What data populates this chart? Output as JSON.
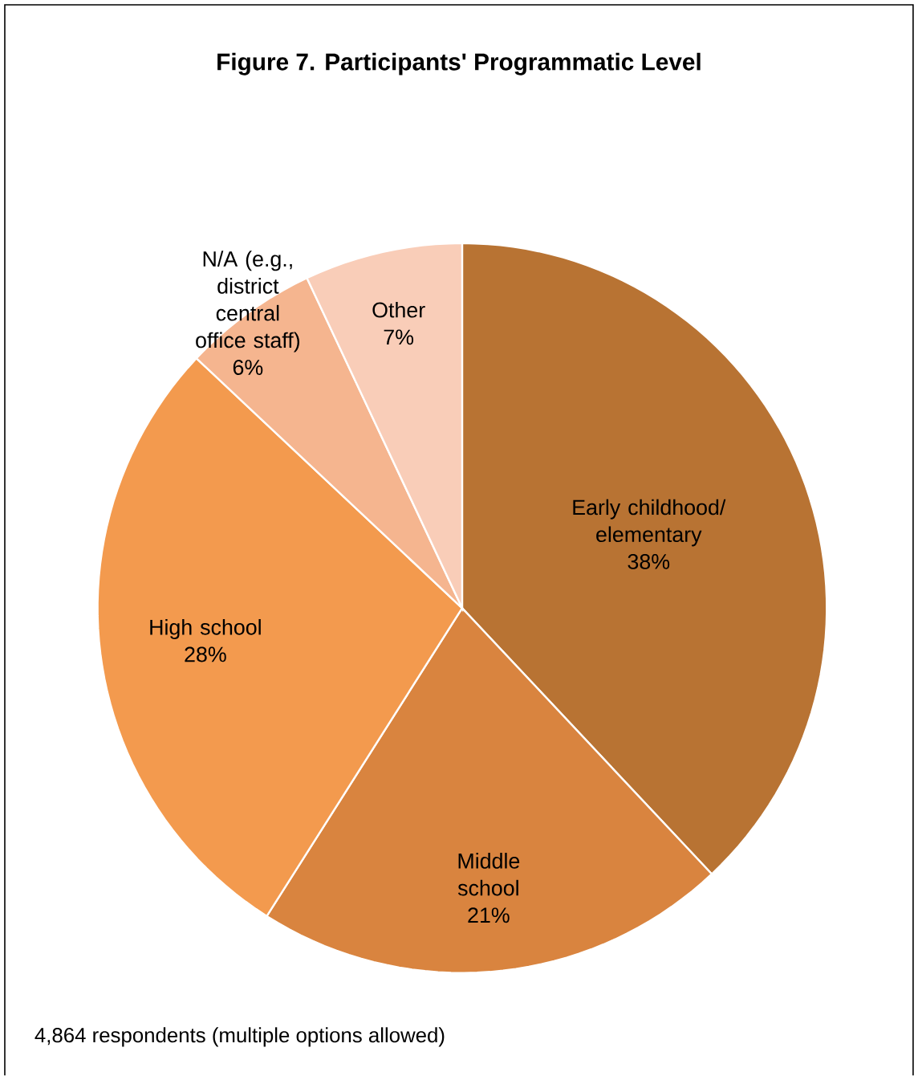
{
  "chart_data": {
    "type": "pie",
    "title": "Figure 7. Participants' Programmatic Level",
    "categories": [
      "Early childhood/ elementary",
      "Middle school",
      "High school",
      "N/A (e.g., district central office staff)",
      "Other"
    ],
    "values": [
      38,
      21,
      28,
      6,
      7
    ],
    "value_labels": [
      "38%",
      "21%",
      "28%",
      "6%",
      "7%"
    ],
    "colors": [
      "#b87333",
      "#d9843f",
      "#f39a4e",
      "#f5b58f",
      "#f9cdb8"
    ],
    "annotations": [
      "4,864 respondents (multiple options allowed)"
    ]
  }
}
